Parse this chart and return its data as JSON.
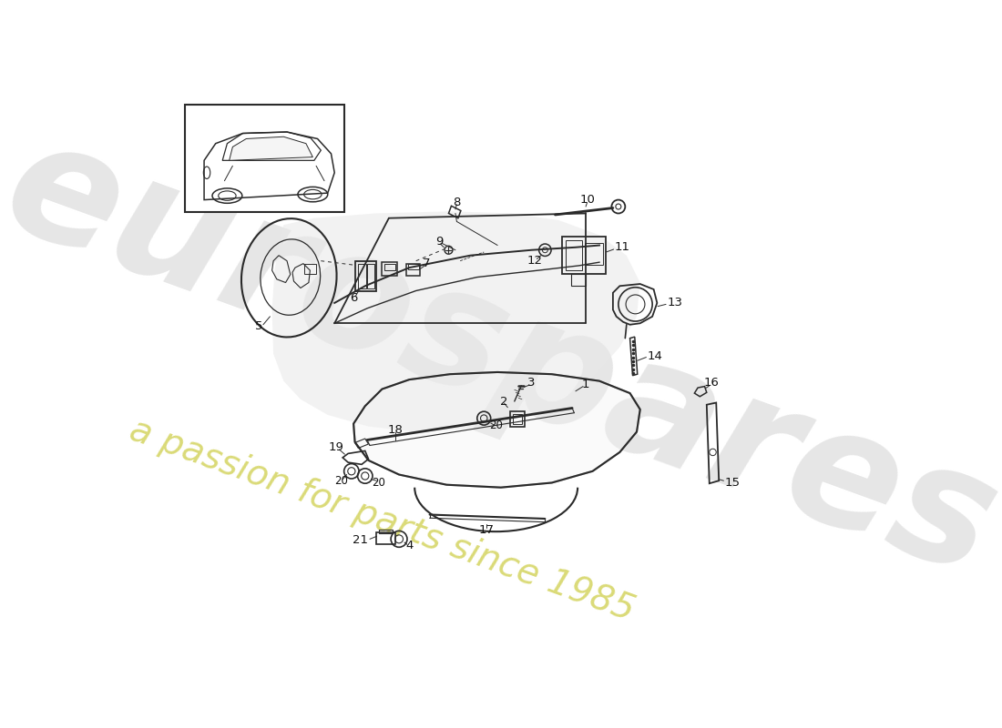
{
  "bg_color": "#ffffff",
  "lc": "#2a2a2a",
  "wm1_color": "#c8c8c8",
  "wm2_color": "#d4d460",
  "wm1_text": "eurospares",
  "wm2_text": "a passion for parts since 1985",
  "fig_w": 11.0,
  "fig_h": 8.0,
  "dpi": 100
}
